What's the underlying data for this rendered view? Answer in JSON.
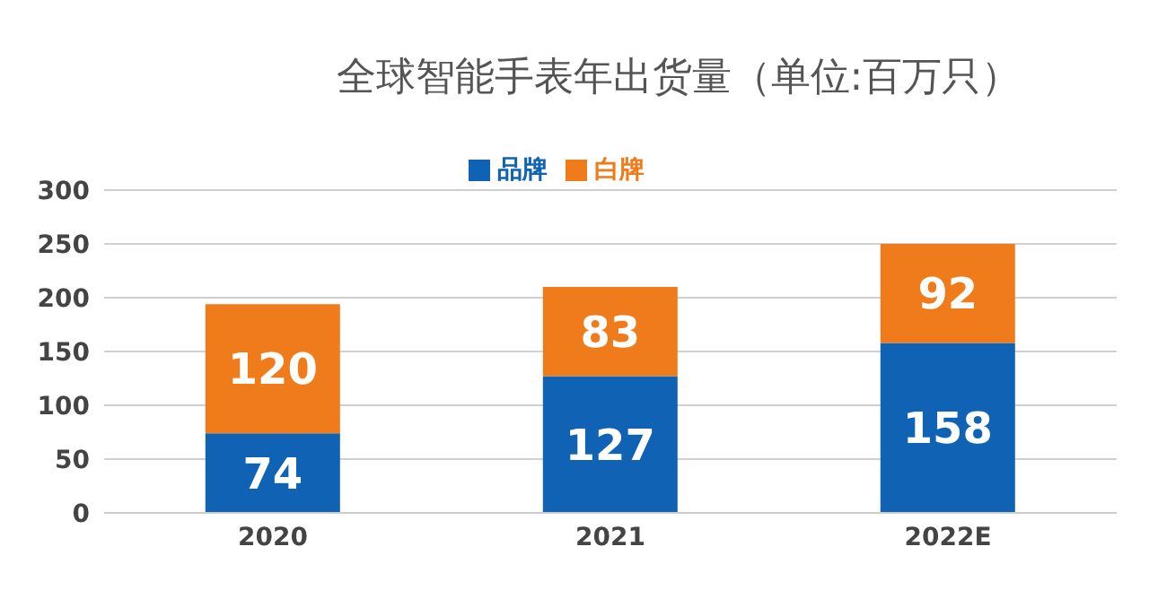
{
  "chart_data": {
    "type": "bar",
    "title": "全球智能手表年出货量（单位:百万只）",
    "categories": [
      "2020",
      "2021",
      "2022E"
    ],
    "stacked": true,
    "series": [
      {
        "name": "品牌",
        "color": "#0f62b4",
        "values": [
          74,
          127,
          158
        ]
      },
      {
        "name": "白牌",
        "color": "#f07b1a",
        "values": [
          120,
          83,
          92
        ]
      }
    ],
    "ylim": [
      0,
      300
    ],
    "yticks": [
      0,
      50,
      100,
      150,
      200,
      250,
      300
    ],
    "grid": "y",
    "legend": "top",
    "data_labels": true
  }
}
